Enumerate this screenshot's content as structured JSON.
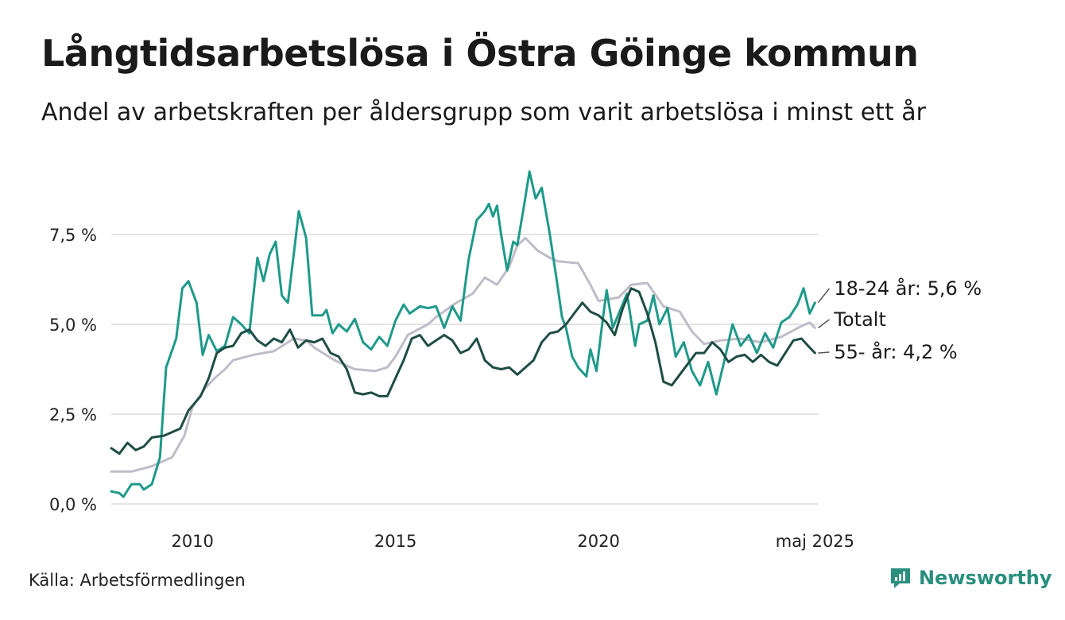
{
  "title": "Långtidsarbetslösa i Östra Göinge kommun",
  "subtitle": "Andel av arbetskraften per åldersgrupp som varit arbetslösa i minst ett år",
  "source": "Källa: Arbetsförmedlingen",
  "brand": "Newsworthy",
  "colors": {
    "youth": "#1f9a8a",
    "total": "#c0bcc8",
    "senior": "#1f4d45",
    "grid": "#dcdcdc",
    "brand": "#2a8f7e"
  },
  "chart_data": {
    "type": "line",
    "ylim": [
      0,
      9.6
    ],
    "xlim": [
      2008.0,
      2025.42
    ],
    "grid": true,
    "yticks": [
      0,
      2.5,
      5,
      7.5
    ],
    "ytick_labels": [
      "0,0 %",
      "2,5 %",
      "5,0 %",
      "7,5 %"
    ],
    "xticks": [
      2010,
      2015,
      2020,
      2025.33
    ],
    "xtick_labels": [
      "2010",
      "2015",
      "2020",
      "maj 2025"
    ],
    "series": [
      {
        "key": "total",
        "label": "Totalt",
        "points": [
          [
            2008.0,
            0.9
          ],
          [
            2008.5,
            0.9
          ],
          [
            2009.0,
            1.05
          ],
          [
            2009.5,
            1.3
          ],
          [
            2009.8,
            1.9
          ],
          [
            2010.0,
            2.7
          ],
          [
            2010.3,
            3.2
          ],
          [
            2010.5,
            3.45
          ],
          [
            2010.8,
            3.75
          ],
          [
            2011.0,
            4.0
          ],
          [
            2011.5,
            4.15
          ],
          [
            2012.0,
            4.25
          ],
          [
            2012.5,
            4.6
          ],
          [
            2012.8,
            4.55
          ],
          [
            2013.0,
            4.35
          ],
          [
            2013.5,
            4.0
          ],
          [
            2014.0,
            3.75
          ],
          [
            2014.5,
            3.7
          ],
          [
            2014.8,
            3.8
          ],
          [
            2015.0,
            4.1
          ],
          [
            2015.3,
            4.7
          ],
          [
            2015.8,
            5.0
          ],
          [
            2016.0,
            5.2
          ],
          [
            2016.5,
            5.6
          ],
          [
            2016.9,
            5.85
          ],
          [
            2017.2,
            6.3
          ],
          [
            2017.5,
            6.1
          ],
          [
            2017.8,
            6.6
          ],
          [
            2018.0,
            7.2
          ],
          [
            2018.2,
            7.4
          ],
          [
            2018.5,
            7.05
          ],
          [
            2018.8,
            6.85
          ],
          [
            2019.0,
            6.75
          ],
          [
            2019.5,
            6.7
          ],
          [
            2019.8,
            6.1
          ],
          [
            2020.0,
            5.65
          ],
          [
            2020.5,
            5.75
          ],
          [
            2020.8,
            6.1
          ],
          [
            2021.2,
            6.15
          ],
          [
            2021.6,
            5.5
          ],
          [
            2022.0,
            5.35
          ],
          [
            2022.3,
            4.8
          ],
          [
            2022.6,
            4.45
          ],
          [
            2023.0,
            4.55
          ],
          [
            2023.5,
            4.6
          ],
          [
            2024.0,
            4.5
          ],
          [
            2024.5,
            4.65
          ],
          [
            2025.0,
            4.95
          ],
          [
            2025.2,
            5.05
          ],
          [
            2025.33,
            4.9
          ]
        ]
      },
      {
        "key": "youth",
        "label": "18-24 år: 5,6 %",
        "points": [
          [
            2008.0,
            0.35
          ],
          [
            2008.2,
            0.3
          ],
          [
            2008.3,
            0.2
          ],
          [
            2008.5,
            0.55
          ],
          [
            2008.7,
            0.55
          ],
          [
            2008.8,
            0.4
          ],
          [
            2009.0,
            0.55
          ],
          [
            2009.2,
            1.3
          ],
          [
            2009.35,
            3.8
          ],
          [
            2009.6,
            4.6
          ],
          [
            2009.75,
            6.0
          ],
          [
            2009.9,
            6.2
          ],
          [
            2010.1,
            5.6
          ],
          [
            2010.25,
            4.15
          ],
          [
            2010.4,
            4.7
          ],
          [
            2010.6,
            4.25
          ],
          [
            2010.8,
            4.4
          ],
          [
            2011.0,
            5.2
          ],
          [
            2011.2,
            5.0
          ],
          [
            2011.4,
            4.75
          ],
          [
            2011.6,
            6.85
          ],
          [
            2011.75,
            6.2
          ],
          [
            2011.9,
            6.95
          ],
          [
            2012.05,
            7.3
          ],
          [
            2012.2,
            5.8
          ],
          [
            2012.35,
            5.6
          ],
          [
            2012.5,
            7.0
          ],
          [
            2012.62,
            8.15
          ],
          [
            2012.8,
            7.4
          ],
          [
            2012.95,
            5.25
          ],
          [
            2013.2,
            5.25
          ],
          [
            2013.3,
            5.4
          ],
          [
            2013.45,
            4.75
          ],
          [
            2013.6,
            5.0
          ],
          [
            2013.8,
            4.8
          ],
          [
            2014.0,
            5.15
          ],
          [
            2014.2,
            4.5
          ],
          [
            2014.4,
            4.3
          ],
          [
            2014.6,
            4.65
          ],
          [
            2014.8,
            4.4
          ],
          [
            2015.0,
            5.1
          ],
          [
            2015.2,
            5.55
          ],
          [
            2015.35,
            5.3
          ],
          [
            2015.6,
            5.5
          ],
          [
            2015.8,
            5.45
          ],
          [
            2016.0,
            5.5
          ],
          [
            2016.2,
            4.9
          ],
          [
            2016.4,
            5.5
          ],
          [
            2016.6,
            5.1
          ],
          [
            2016.8,
            6.8
          ],
          [
            2017.0,
            7.9
          ],
          [
            2017.2,
            8.15
          ],
          [
            2017.3,
            8.35
          ],
          [
            2017.4,
            8.0
          ],
          [
            2017.5,
            8.3
          ],
          [
            2017.6,
            7.5
          ],
          [
            2017.75,
            6.5
          ],
          [
            2017.9,
            7.3
          ],
          [
            2018.0,
            7.2
          ],
          [
            2018.15,
            8.2
          ],
          [
            2018.3,
            9.25
          ],
          [
            2018.45,
            8.5
          ],
          [
            2018.6,
            8.8
          ],
          [
            2018.8,
            7.5
          ],
          [
            2019.0,
            6.0
          ],
          [
            2019.1,
            5.2
          ],
          [
            2019.2,
            4.9
          ],
          [
            2019.35,
            4.1
          ],
          [
            2019.5,
            3.8
          ],
          [
            2019.7,
            3.55
          ],
          [
            2019.8,
            4.3
          ],
          [
            2019.95,
            3.7
          ],
          [
            2020.1,
            5.1
          ],
          [
            2020.2,
            5.95
          ],
          [
            2020.35,
            4.9
          ],
          [
            2020.5,
            5.3
          ],
          [
            2020.7,
            5.85
          ],
          [
            2020.9,
            4.4
          ],
          [
            2021.0,
            5.0
          ],
          [
            2021.2,
            5.1
          ],
          [
            2021.35,
            5.8
          ],
          [
            2021.5,
            5.0
          ],
          [
            2021.7,
            5.45
          ],
          [
            2021.9,
            4.1
          ],
          [
            2022.1,
            4.5
          ],
          [
            2022.3,
            3.7
          ],
          [
            2022.5,
            3.3
          ],
          [
            2022.7,
            3.95
          ],
          [
            2022.9,
            3.05
          ],
          [
            2023.1,
            4.0
          ],
          [
            2023.3,
            5.0
          ],
          [
            2023.5,
            4.4
          ],
          [
            2023.7,
            4.7
          ],
          [
            2023.9,
            4.2
          ],
          [
            2024.1,
            4.75
          ],
          [
            2024.3,
            4.35
          ],
          [
            2024.5,
            5.05
          ],
          [
            2024.7,
            5.2
          ],
          [
            2024.9,
            5.55
          ],
          [
            2025.05,
            6.0
          ],
          [
            2025.2,
            5.3
          ],
          [
            2025.33,
            5.6
          ]
        ]
      },
      {
        "key": "senior",
        "label": "55- år: 4,2 %",
        "points": [
          [
            2008.0,
            1.55
          ],
          [
            2008.2,
            1.4
          ],
          [
            2008.4,
            1.7
          ],
          [
            2008.6,
            1.5
          ],
          [
            2008.8,
            1.6
          ],
          [
            2009.0,
            1.85
          ],
          [
            2009.3,
            1.9
          ],
          [
            2009.5,
            2.0
          ],
          [
            2009.7,
            2.1
          ],
          [
            2009.9,
            2.6
          ],
          [
            2010.2,
            3.0
          ],
          [
            2010.4,
            3.5
          ],
          [
            2010.6,
            4.2
          ],
          [
            2010.8,
            4.35
          ],
          [
            2011.0,
            4.4
          ],
          [
            2011.2,
            4.75
          ],
          [
            2011.4,
            4.85
          ],
          [
            2011.6,
            4.55
          ],
          [
            2011.8,
            4.4
          ],
          [
            2012.0,
            4.6
          ],
          [
            2012.2,
            4.5
          ],
          [
            2012.4,
            4.85
          ],
          [
            2012.6,
            4.35
          ],
          [
            2012.8,
            4.55
          ],
          [
            2013.0,
            4.5
          ],
          [
            2013.2,
            4.6
          ],
          [
            2013.4,
            4.2
          ],
          [
            2013.6,
            4.1
          ],
          [
            2013.8,
            3.75
          ],
          [
            2014.0,
            3.1
          ],
          [
            2014.2,
            3.05
          ],
          [
            2014.4,
            3.1
          ],
          [
            2014.6,
            3.0
          ],
          [
            2014.8,
            3.0
          ],
          [
            2015.0,
            3.5
          ],
          [
            2015.2,
            4.0
          ],
          [
            2015.4,
            4.6
          ],
          [
            2015.6,
            4.7
          ],
          [
            2015.8,
            4.4
          ],
          [
            2016.0,
            4.55
          ],
          [
            2016.2,
            4.7
          ],
          [
            2016.4,
            4.55
          ],
          [
            2016.6,
            4.2
          ],
          [
            2016.8,
            4.3
          ],
          [
            2017.0,
            4.6
          ],
          [
            2017.2,
            4.0
          ],
          [
            2017.4,
            3.8
          ],
          [
            2017.6,
            3.75
          ],
          [
            2017.8,
            3.8
          ],
          [
            2018.0,
            3.6
          ],
          [
            2018.2,
            3.8
          ],
          [
            2018.4,
            4.0
          ],
          [
            2018.6,
            4.5
          ],
          [
            2018.8,
            4.75
          ],
          [
            2019.0,
            4.8
          ],
          [
            2019.2,
            5.0
          ],
          [
            2019.4,
            5.3
          ],
          [
            2019.6,
            5.6
          ],
          [
            2019.8,
            5.35
          ],
          [
            2020.0,
            5.25
          ],
          [
            2020.2,
            5.05
          ],
          [
            2020.4,
            4.7
          ],
          [
            2020.6,
            5.45
          ],
          [
            2020.8,
            6.0
          ],
          [
            2021.0,
            5.9
          ],
          [
            2021.2,
            5.3
          ],
          [
            2021.4,
            4.5
          ],
          [
            2021.6,
            3.4
          ],
          [
            2021.8,
            3.3
          ],
          [
            2022.0,
            3.6
          ],
          [
            2022.2,
            3.9
          ],
          [
            2022.4,
            4.2
          ],
          [
            2022.6,
            4.2
          ],
          [
            2022.8,
            4.5
          ],
          [
            2023.0,
            4.3
          ],
          [
            2023.2,
            3.95
          ],
          [
            2023.4,
            4.1
          ],
          [
            2023.6,
            4.15
          ],
          [
            2023.8,
            3.95
          ],
          [
            2024.0,
            4.15
          ],
          [
            2024.2,
            3.95
          ],
          [
            2024.4,
            3.85
          ],
          [
            2024.6,
            4.2
          ],
          [
            2024.8,
            4.55
          ],
          [
            2025.0,
            4.6
          ],
          [
            2025.2,
            4.35
          ],
          [
            2025.33,
            4.2
          ]
        ]
      }
    ]
  }
}
